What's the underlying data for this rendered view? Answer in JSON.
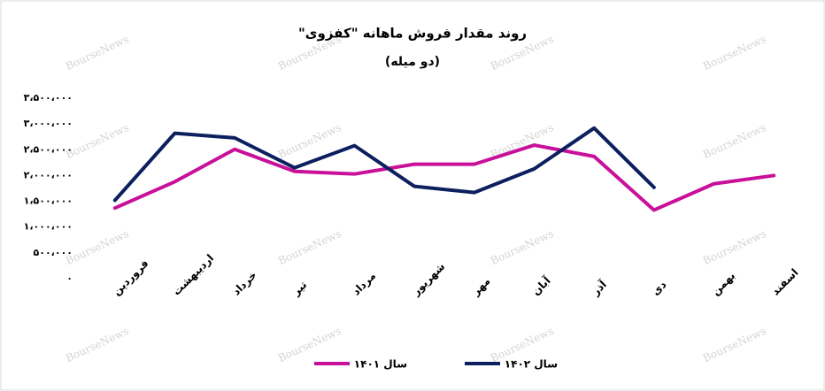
{
  "chart_data": {
    "type": "line",
    "title": "روند مقدار فروش ماهانه \"کفزوی\"",
    "subtitle": "(دو میله)",
    "watermark": "BourseNews",
    "categories": [
      "فروردین",
      "اردیبهشت",
      "خرداد",
      "تیر",
      "مرداد",
      "شهریور",
      "مهر",
      "آبان",
      "آذر",
      "دی",
      "بهمن",
      "اسفند"
    ],
    "series": [
      {
        "name": "سال ۱۴۰۱",
        "color": "#c8109a",
        "values": [
          1370000,
          1880000,
          2510000,
          2080000,
          2030000,
          2220000,
          2220000,
          2590000,
          2370000,
          1330000,
          1840000,
          2000000
        ]
      },
      {
        "name": "سال ۱۴۰۲",
        "color": "#0c1f5e",
        "values": [
          1520000,
          2820000,
          2730000,
          2150000,
          2580000,
          1790000,
          1670000,
          2130000,
          2920000,
          1770000,
          null,
          null
        ]
      }
    ],
    "ylim": [
      0,
      3500000
    ],
    "yticks": [
      {
        "value": 0,
        "label": "۰"
      },
      {
        "value": 500000,
        "label": "۵۰۰،۰۰۰"
      },
      {
        "value": 1000000,
        "label": "۱،۰۰۰،۰۰۰"
      },
      {
        "value": 1500000,
        "label": "۱،۵۰۰،۰۰۰"
      },
      {
        "value": 2000000,
        "label": "۲،۰۰۰،۰۰۰"
      },
      {
        "value": 2500000,
        "label": "۲،۵۰۰،۰۰۰"
      },
      {
        "value": 3000000,
        "label": "۳،۰۰۰،۰۰۰"
      },
      {
        "value": 3500000,
        "label": "۳،۵۰۰،۰۰۰"
      }
    ],
    "grid": false,
    "legend": "bottom"
  }
}
